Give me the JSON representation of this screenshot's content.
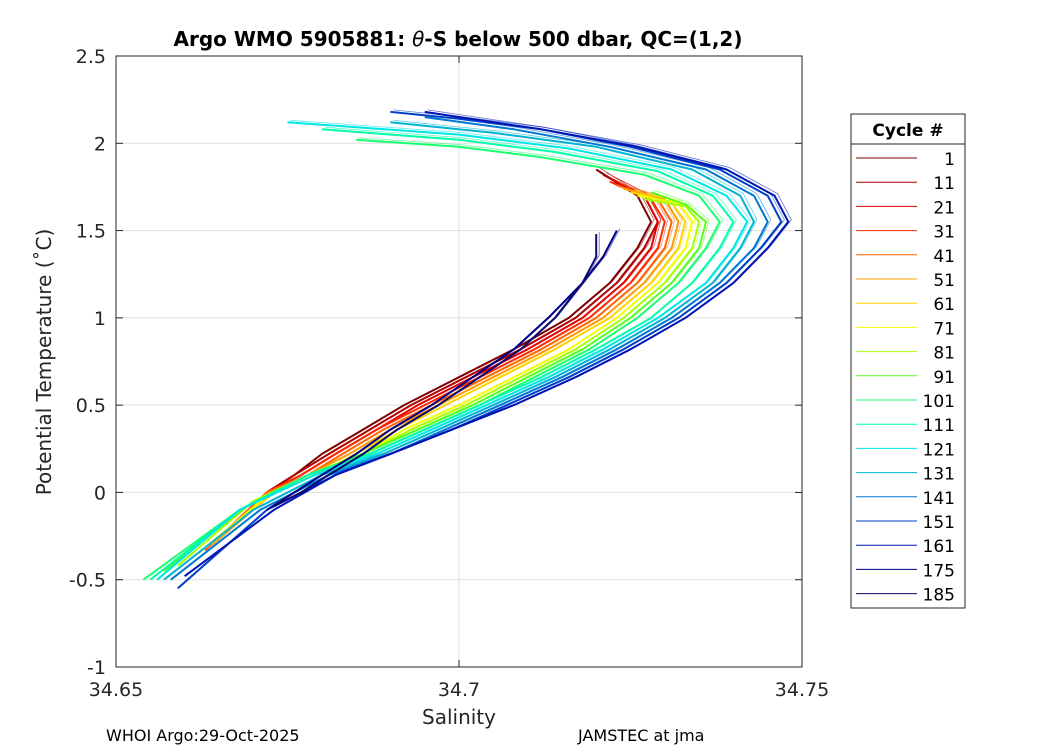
{
  "chart_data": {
    "type": "line",
    "title_prefix": "Argo WMO 5905881: ",
    "title_theta": "θ",
    "title_suffix": "-S below 500 dbar,  QC=(1,2)",
    "xlabel": "Salinity",
    "ylabel": "Potential Temperature (˚C)",
    "xlim": [
      34.65,
      34.75
    ],
    "ylim": [
      -1,
      2.5
    ],
    "xticks": [
      34.65,
      34.7,
      34.75
    ],
    "xtick_labels": [
      "34.65",
      "34.7",
      "34.75"
    ],
    "yticks": [
      -1,
      -0.5,
      0,
      0.5,
      1,
      1.5,
      2,
      2.5
    ],
    "ytick_labels": [
      "-1",
      "-0.5",
      "0",
      "0.5",
      "1",
      "1.5",
      "2",
      "2.5"
    ],
    "grid": true,
    "legend_title": "Cycle #",
    "legend_position": "right",
    "series": [
      {
        "name": "1",
        "color": "#7f0000",
        "salinity": [
          34.672,
          34.676,
          34.68,
          34.686,
          34.692,
          34.7,
          34.708,
          34.716,
          34.722,
          34.726,
          34.728,
          34.726,
          34.72
        ],
        "theta": [
          0.0,
          0.1,
          0.22,
          0.36,
          0.5,
          0.66,
          0.82,
          1.0,
          1.2,
          1.4,
          1.55,
          1.7,
          1.85
        ]
      },
      {
        "name": "11",
        "color": "#b00000",
        "salinity": [
          34.672,
          34.676,
          34.681,
          34.687,
          34.693,
          34.701,
          34.709,
          34.717,
          34.723,
          34.727,
          34.729,
          34.727,
          34.721
        ],
        "theta": [
          0.0,
          0.1,
          0.22,
          0.36,
          0.5,
          0.66,
          0.82,
          1.0,
          1.2,
          1.4,
          1.55,
          1.7,
          1.82
        ]
      },
      {
        "name": "21",
        "color": "#e30000",
        "salinity": [
          34.663,
          34.672,
          34.677,
          34.682,
          34.688,
          34.694,
          34.702,
          34.71,
          34.718,
          34.724,
          34.728,
          34.729,
          34.727,
          34.722
        ],
        "theta": [
          -0.33,
          0.0,
          0.1,
          0.22,
          0.36,
          0.5,
          0.66,
          0.82,
          1.0,
          1.2,
          1.4,
          1.55,
          1.7,
          1.8
        ]
      },
      {
        "name": "31",
        "color": "#ff2a00",
        "salinity": [
          34.663,
          34.672,
          34.677,
          34.682,
          34.688,
          34.695,
          34.703,
          34.711,
          34.719,
          34.725,
          34.729,
          34.73,
          34.728,
          34.722
        ],
        "theta": [
          -0.33,
          0.0,
          0.1,
          0.22,
          0.36,
          0.5,
          0.66,
          0.82,
          1.0,
          1.2,
          1.4,
          1.55,
          1.68,
          1.78
        ]
      },
      {
        "name": "41",
        "color": "#ff6400",
        "salinity": [
          34.664,
          34.672,
          34.678,
          34.683,
          34.689,
          34.696,
          34.704,
          34.712,
          34.72,
          34.726,
          34.73,
          34.731,
          34.729,
          34.723
        ],
        "theta": [
          -0.3,
          0.0,
          0.1,
          0.22,
          0.36,
          0.5,
          0.66,
          0.82,
          1.0,
          1.2,
          1.4,
          1.55,
          1.68,
          1.76
        ]
      },
      {
        "name": "51",
        "color": "#ff9b00",
        "salinity": [
          34.664,
          34.673,
          34.678,
          34.684,
          34.69,
          34.697,
          34.705,
          34.713,
          34.721,
          34.727,
          34.731,
          34.732,
          34.73,
          34.724
        ],
        "theta": [
          -0.3,
          0.0,
          0.1,
          0.22,
          0.36,
          0.5,
          0.66,
          0.82,
          1.0,
          1.2,
          1.4,
          1.55,
          1.68,
          1.74
        ]
      },
      {
        "name": "61",
        "color": "#ffd200",
        "salinity": [
          34.663,
          34.673,
          34.679,
          34.685,
          34.691,
          34.698,
          34.706,
          34.714,
          34.722,
          34.728,
          34.732,
          34.733,
          34.731,
          34.725
        ],
        "theta": [
          -0.32,
          0.0,
          0.1,
          0.22,
          0.36,
          0.5,
          0.66,
          0.82,
          1.0,
          1.2,
          1.4,
          1.55,
          1.66,
          1.72
        ]
      },
      {
        "name": "71",
        "color": "#f5ff00",
        "salinity": [
          34.662,
          34.672,
          34.679,
          34.686,
          34.692,
          34.7,
          34.708,
          34.716,
          34.723,
          34.729,
          34.733,
          34.734,
          34.732,
          34.726
        ],
        "theta": [
          -0.35,
          -0.02,
          0.1,
          0.22,
          0.36,
          0.5,
          0.66,
          0.82,
          1.0,
          1.2,
          1.4,
          1.55,
          1.66,
          1.7
        ]
      },
      {
        "name": "81",
        "color": "#a6ff00",
        "salinity": [
          34.659,
          34.67,
          34.678,
          34.686,
          34.693,
          34.701,
          34.709,
          34.717,
          34.724,
          34.73,
          34.734,
          34.735,
          34.733,
          34.727
        ],
        "theta": [
          -0.42,
          -0.05,
          0.1,
          0.22,
          0.36,
          0.5,
          0.66,
          0.82,
          1.0,
          1.2,
          1.4,
          1.55,
          1.64,
          1.68
        ]
      },
      {
        "name": "91",
        "color": "#55ff1a",
        "salinity": [
          34.657,
          34.669,
          34.678,
          34.686,
          34.694,
          34.702,
          34.71,
          34.718,
          34.725,
          34.731,
          34.735,
          34.736,
          34.733,
          34.728
        ],
        "theta": [
          -0.45,
          -0.08,
          0.1,
          0.22,
          0.36,
          0.5,
          0.66,
          0.82,
          1.0,
          1.2,
          1.4,
          1.55,
          1.65,
          1.72
        ]
      },
      {
        "name": "101",
        "color": "#1aff6e",
        "salinity": [
          34.654,
          34.668,
          34.678,
          34.687,
          34.695,
          34.703,
          34.711,
          34.719,
          34.726,
          34.732,
          34.736,
          34.738,
          34.735,
          34.727,
          34.712,
          34.7,
          34.685
        ],
        "theta": [
          -0.5,
          -0.1,
          0.1,
          0.22,
          0.36,
          0.5,
          0.66,
          0.82,
          1.0,
          1.2,
          1.4,
          1.55,
          1.7,
          1.82,
          1.92,
          1.98,
          2.02
        ]
      },
      {
        "name": "111",
        "color": "#00ffaa",
        "salinity": [
          34.655,
          34.668,
          34.678,
          34.687,
          34.695,
          34.703,
          34.712,
          34.72,
          34.728,
          34.734,
          34.738,
          34.74,
          34.737,
          34.729,
          34.714,
          34.7,
          34.68
        ],
        "theta": [
          -0.5,
          -0.1,
          0.1,
          0.22,
          0.36,
          0.5,
          0.66,
          0.82,
          1.0,
          1.2,
          1.4,
          1.55,
          1.7,
          1.84,
          1.95,
          2.02,
          2.08
        ]
      },
      {
        "name": "121",
        "color": "#00e6e6",
        "salinity": [
          34.656,
          34.668,
          34.679,
          34.688,
          34.696,
          34.704,
          34.713,
          34.721,
          34.729,
          34.736,
          34.74,
          34.742,
          34.739,
          34.731,
          34.716,
          34.7,
          34.675
        ],
        "theta": [
          -0.5,
          -0.1,
          0.1,
          0.22,
          0.36,
          0.5,
          0.66,
          0.82,
          1.0,
          1.2,
          1.4,
          1.55,
          1.7,
          1.85,
          1.97,
          2.05,
          2.12
        ]
      },
      {
        "name": "131",
        "color": "#00b4d2",
        "salinity": [
          34.657,
          34.67,
          34.68,
          34.689,
          34.697,
          34.705,
          34.714,
          34.722,
          34.73,
          34.737,
          34.741,
          34.743,
          34.741,
          34.734,
          34.72,
          34.705,
          34.69
        ],
        "theta": [
          -0.5,
          -0.1,
          0.1,
          0.22,
          0.36,
          0.5,
          0.66,
          0.82,
          1.0,
          1.2,
          1.4,
          1.55,
          1.7,
          1.85,
          1.98,
          2.06,
          2.12
        ]
      },
      {
        "name": "141",
        "color": "#0078d2",
        "salinity": [
          34.658,
          34.671,
          34.681,
          34.69,
          34.698,
          34.706,
          34.715,
          34.723,
          34.731,
          34.738,
          34.743,
          34.745,
          34.743,
          34.736,
          34.722,
          34.708,
          34.695
        ],
        "theta": [
          -0.5,
          -0.1,
          0.1,
          0.22,
          0.36,
          0.5,
          0.66,
          0.82,
          1.0,
          1.2,
          1.4,
          1.55,
          1.7,
          1.85,
          1.98,
          2.08,
          2.15
        ]
      },
      {
        "name": "151",
        "color": "#0041c8",
        "salinity": [
          34.659,
          34.672,
          34.682,
          34.69,
          34.699,
          34.707,
          34.716,
          34.724,
          34.732,
          34.739,
          34.744,
          34.747,
          34.745,
          34.738,
          34.725,
          34.712,
          34.7,
          34.69
        ],
        "theta": [
          -0.55,
          -0.1,
          0.1,
          0.22,
          0.36,
          0.5,
          0.66,
          0.82,
          1.0,
          1.2,
          1.4,
          1.55,
          1.7,
          1.85,
          1.98,
          2.08,
          2.14,
          2.18
        ]
      },
      {
        "name": "161",
        "color": "#0014b4",
        "salinity": [
          34.66,
          34.673,
          34.682,
          34.69,
          34.699,
          34.708,
          34.717,
          34.725,
          34.733,
          34.74,
          34.745,
          34.748,
          34.746,
          34.739,
          34.726,
          34.712,
          34.695
        ],
        "theta": [
          -0.48,
          -0.1,
          0.1,
          0.22,
          0.36,
          0.5,
          0.66,
          0.82,
          1.0,
          1.2,
          1.4,
          1.55,
          1.7,
          1.85,
          1.98,
          2.08,
          2.18
        ]
      },
      {
        "name": "175",
        "color": "#00008c",
        "salinity": [
          34.672,
          34.676,
          34.68,
          34.685,
          34.69,
          34.696,
          34.702,
          34.708,
          34.713,
          34.718,
          34.721,
          34.723
        ],
        "theta": [
          -0.1,
          0.0,
          0.1,
          0.22,
          0.36,
          0.5,
          0.66,
          0.82,
          1.0,
          1.2,
          1.35,
          1.5
        ]
      },
      {
        "name": "185",
        "color": "#0a0a6e",
        "salinity": [
          34.673,
          34.677,
          34.681,
          34.686,
          34.691,
          34.697,
          34.703,
          34.709,
          34.714,
          34.718,
          34.72,
          34.72
        ],
        "theta": [
          -0.08,
          0.0,
          0.1,
          0.22,
          0.36,
          0.5,
          0.66,
          0.82,
          1.0,
          1.2,
          1.35,
          1.48
        ]
      }
    ]
  },
  "footer": {
    "left": "WHOI Argo:29-Oct-2025",
    "right": "JAMSTEC at jma"
  }
}
